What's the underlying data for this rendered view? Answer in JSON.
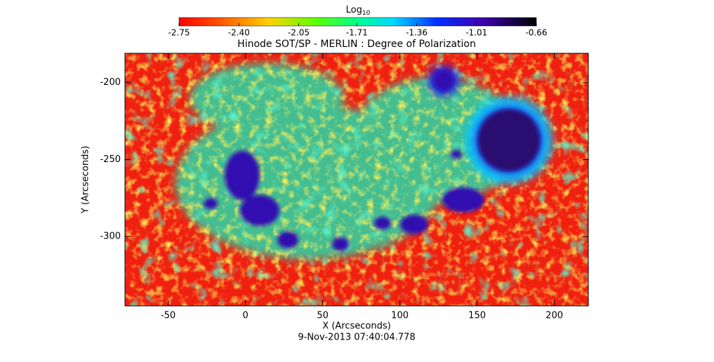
{
  "chart_data": {
    "type": "image",
    "title": "Hinode SOT/SP - MERLIN : Degree of Polarization",
    "xlabel": "X (Arcseconds)",
    "ylabel": "Y (Arcseconds)",
    "date": "9-Nov-2013 07:40:04.778",
    "colorbar_label": {
      "base": "Log",
      "subscript": "10"
    },
    "clim": [
      -2.75,
      -0.66
    ],
    "cticks": [
      -2.75,
      {
        "value": -2.4,
        "label": "-2.40"
      },
      -2.05,
      -1.71,
      -1.36,
      -1.01,
      -0.66
    ],
    "xlim": [
      -78,
      222
    ],
    "xticks": [
      -50,
      0,
      50,
      100,
      150,
      200
    ],
    "ylim": [
      -345,
      -181
    ],
    "yticks": [
      -300,
      -250,
      -200
    ]
  }
}
